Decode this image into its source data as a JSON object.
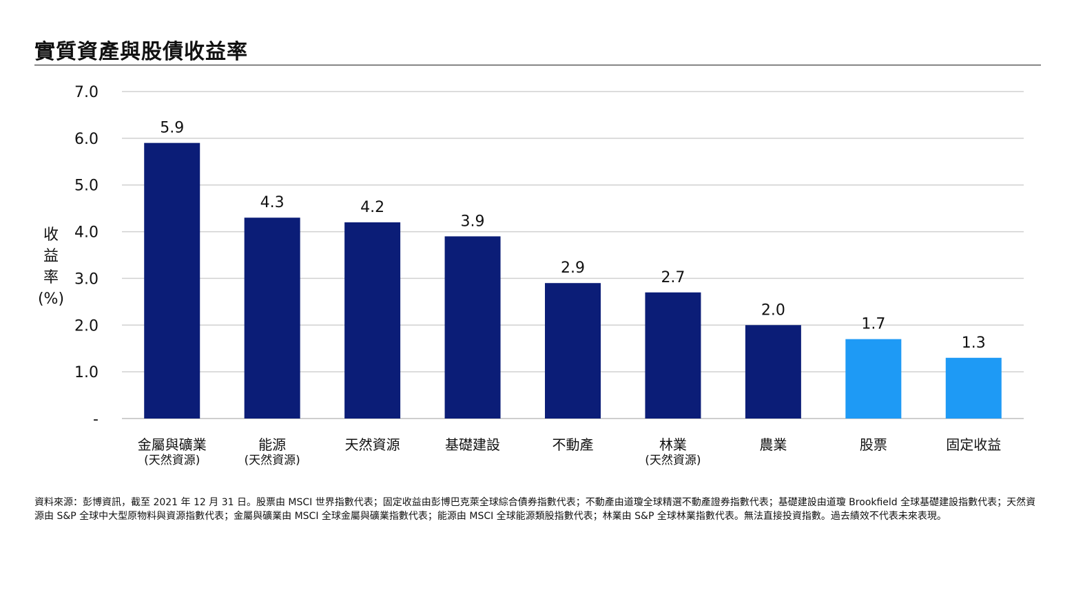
{
  "chart_data": {
    "type": "bar",
    "title": "實質資產與股債收益率",
    "ylabel": "收益率 (%)",
    "ylim": [
      0,
      7
    ],
    "yticks": [
      0,
      1,
      2,
      3,
      4,
      5,
      6,
      7
    ],
    "ytick_labels": [
      "-",
      "1.0",
      "2.0",
      "3.0",
      "4.0",
      "5.0",
      "6.0",
      "7.0"
    ],
    "grid": true,
    "categories": [
      {
        "label": "金屬與礦業",
        "sublabel": "(天然資源)"
      },
      {
        "label": "能源",
        "sublabel": "(天然資源)"
      },
      {
        "label": "天然資源",
        "sublabel": ""
      },
      {
        "label": "基礎建設",
        "sublabel": ""
      },
      {
        "label": "不動產",
        "sublabel": ""
      },
      {
        "label": "林業",
        "sublabel": "(天然資源)"
      },
      {
        "label": "農業",
        "sublabel": ""
      },
      {
        "label": "股票",
        "sublabel": ""
      },
      {
        "label": "固定收益",
        "sublabel": ""
      }
    ],
    "values": [
      5.9,
      4.3,
      4.2,
      3.9,
      2.9,
      2.7,
      2.0,
      1.7,
      1.3
    ],
    "value_labels": [
      "5.9",
      "4.3",
      "4.2",
      "3.9",
      "2.9",
      "2.7",
      "2.0",
      "1.7",
      "1.3"
    ],
    "bar_colors": [
      "#0b1d77",
      "#0b1d77",
      "#0b1d77",
      "#0b1d77",
      "#0b1d77",
      "#0b1d77",
      "#0b1d77",
      "#1e9af5",
      "#1e9af5"
    ]
  },
  "colors": {
    "real_assets": "#0b1d77",
    "stocks_bonds": "#1e9af5",
    "grid": "#d0d0d0"
  },
  "ylabel_chars": [
    "收",
    "益",
    "率",
    "(%)"
  ],
  "source_note": "資料來源：彭博資訊，截至 2021 年 12 月 31 日。股票由 MSCI 世界指數代表；固定收益由彭博巴克萊全球綜合債券指數代表；不動產由道瓊全球精選不動產證券指數代表；基礎建設由道瓊 Brookfield 全球基礎建設指數代表；天然資源由 S&P 全球中大型原物料與資源指數代表；金屬與礦業由 MSCI 全球金屬與礦業指數代表；能源由 MSCI 全球能源類股指數代表；林業由 S&P 全球林業指數代表。無法直接投資指數。過去績效不代表未來表現。"
}
